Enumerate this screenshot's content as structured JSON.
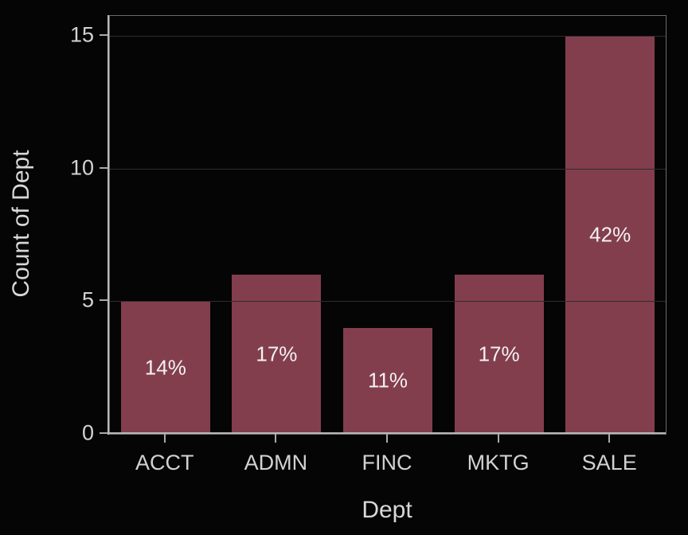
{
  "chart_data": {
    "type": "bar",
    "title": "",
    "categories": [
      "ACCT",
      "ADMN",
      "FINC",
      "MKTG",
      "SALE"
    ],
    "values": [
      5,
      6,
      4,
      6,
      15
    ],
    "bar_labels": [
      "14%",
      "17%",
      "11%",
      "17%",
      "42%"
    ],
    "xlabel": "Dept",
    "ylabel": "Count of Dept",
    "ylim": [
      0,
      15.75
    ],
    "yticks": [
      0,
      5,
      10,
      15
    ],
    "grid": true,
    "legend": "none",
    "colors": {
      "background": "#050505",
      "bar": "#833E4E",
      "gridline": "#2d2d2d",
      "axis_line": "#b9b9b9",
      "frame": "#6a6a6a",
      "tick": "#aaaaaa",
      "tick_label_text": "#d2d2d2",
      "axis_title_text": "#d8d8d8",
      "bar_label_text": "#f2f2f2"
    }
  }
}
